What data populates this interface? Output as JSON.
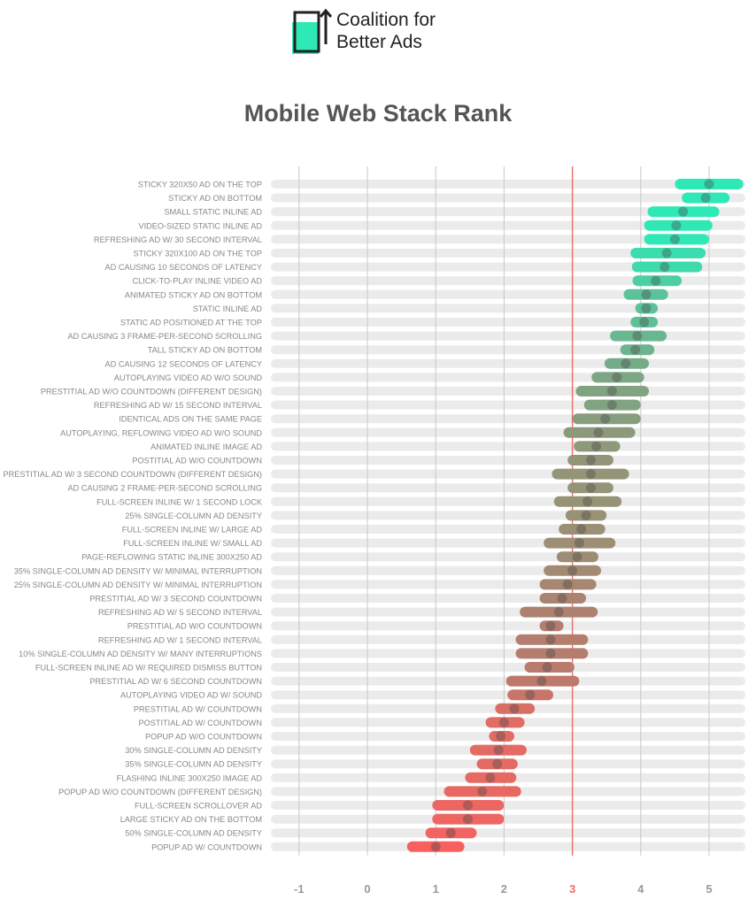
{
  "logo": {
    "line1": "Coalition for",
    "line2": "Better Ads",
    "color": "#2ee8b6"
  },
  "chart_data": {
    "type": "range-dot",
    "title": "Mobile Web Stack Rank",
    "xlim": [
      -1.4,
      5.55
    ],
    "xticks": [
      "-1",
      "0",
      "1",
      "2",
      "3",
      "4",
      "5"
    ],
    "threshold": 3,
    "threshold_color": "#f06b6b",
    "rows": [
      {
        "label": "STICKY 320X50 AD ON THE TOP",
        "score": 5.0,
        "low": 4.5,
        "high": 5.5
      },
      {
        "label": "STICKY AD ON BOTTOM",
        "score": 4.95,
        "low": 4.6,
        "high": 5.3
      },
      {
        "label": "SMALL STATIC INLINE AD",
        "score": 4.62,
        "low": 4.1,
        "high": 5.15
      },
      {
        "label": "VIDEO-SIZED STATIC INLINE AD",
        "score": 4.52,
        "low": 4.05,
        "high": 5.05
      },
      {
        "label": "REFRESHING AD W/ 30 SECOND INTERVAL",
        "score": 4.5,
        "low": 4.05,
        "high": 5.0
      },
      {
        "label": "STICKY 320X100 AD ON THE TOP",
        "score": 4.38,
        "low": 3.85,
        "high": 4.95
      },
      {
        "label": "AD CAUSING 10 SECONDS OF LATENCY",
        "score": 4.35,
        "low": 3.87,
        "high": 4.9
      },
      {
        "label": "CLICK-TO-PLAY INLINE VIDEO AD",
        "score": 4.22,
        "low": 3.88,
        "high": 4.6
      },
      {
        "label": "ANIMATED STICKY AD ON BOTTOM",
        "score": 4.08,
        "low": 3.75,
        "high": 4.4
      },
      {
        "label": "STATIC INLINE AD",
        "score": 4.08,
        "low": 3.92,
        "high": 4.25
      },
      {
        "label": "STATIC AD POSITIONED AT THE TOP",
        "score": 4.05,
        "low": 3.85,
        "high": 4.25
      },
      {
        "label": "AD CAUSING 3 FRAME-PER-SECOND SCROLLING",
        "score": 3.95,
        "low": 3.55,
        "high": 4.38
      },
      {
        "label": "TALL STICKY AD ON BOTTOM",
        "score": 3.92,
        "low": 3.7,
        "high": 4.2
      },
      {
        "label": "AD CAUSING 12 SECONDS OF LATENCY",
        "score": 3.78,
        "low": 3.47,
        "high": 4.12
      },
      {
        "label": "AUTOPLAYING VIDEO AD W/O SOUND",
        "score": 3.65,
        "low": 3.28,
        "high": 4.05
      },
      {
        "label": "PRESTITIAL AD W/O COUNTDOWN (DIFFERENT DESIGN)",
        "score": 3.58,
        "low": 3.05,
        "high": 4.12
      },
      {
        "label": "REFRESHING AD W/ 15 SECOND INTERVAL",
        "score": 3.58,
        "low": 3.17,
        "high": 4.0
      },
      {
        "label": "IDENTICAL ADS ON THE SAME PAGE",
        "score": 3.48,
        "low": 3.0,
        "high": 4.0
      },
      {
        "label": "AUTOPLAYING, REFLOWING VIDEO AD W/O SOUND",
        "score": 3.38,
        "low": 2.87,
        "high": 3.92
      },
      {
        "label": "ANIMATED INLINE IMAGE AD",
        "score": 3.35,
        "low": 3.02,
        "high": 3.7
      },
      {
        "label": "POSTITIAL AD W/O COUNTDOWN",
        "score": 3.27,
        "low": 2.93,
        "high": 3.6
      },
      {
        "label": "PRESTITIAL AD W/ 3 SECOND COUNTDOWN (DIFFERENT DESIGN)",
        "score": 3.27,
        "low": 2.7,
        "high": 3.83
      },
      {
        "label": "AD CAUSING 2 FRAME-PER-SECOND SCROLLING",
        "score": 3.27,
        "low": 2.93,
        "high": 3.6
      },
      {
        "label": "FULL-SCREEN INLINE W/ 1 SECOND LOCK",
        "score": 3.22,
        "low": 2.73,
        "high": 3.72
      },
      {
        "label": "25% SINGLE-COLUMN AD DENSITY",
        "score": 3.2,
        "low": 2.9,
        "high": 3.5
      },
      {
        "label": "FULL-SCREEN INLINE W/ LARGE AD",
        "score": 3.13,
        "low": 2.8,
        "high": 3.48
      },
      {
        "label": "FULL-SCREEN INLINE W/ SMALL AD",
        "score": 3.1,
        "low": 2.58,
        "high": 3.63
      },
      {
        "label": "PAGE-REFLOWING STATIC INLINE 300X250 AD",
        "score": 3.07,
        "low": 2.77,
        "high": 3.38
      },
      {
        "label": "35% SINGLE-COLUMN AD DENSITY W/ MINIMAL INTERRUPTION",
        "score": 3.0,
        "low": 2.58,
        "high": 3.42
      },
      {
        "label": "25% SINGLE-COLUMN AD DENSITY W/ MINIMAL INTERRUPTION",
        "score": 2.93,
        "low": 2.52,
        "high": 3.35
      },
      {
        "label": "PRESTITIAL AD W/ 3 SECOND COUNTDOWN",
        "score": 2.85,
        "low": 2.52,
        "high": 3.2
      },
      {
        "label": "REFRESHING AD W/ 5 SECOND INTERVAL",
        "score": 2.8,
        "low": 2.23,
        "high": 3.37
      },
      {
        "label": "PRESTITIAL AD W/O COUNTDOWN",
        "score": 2.68,
        "low": 2.52,
        "high": 2.87
      },
      {
        "label": "REFRESHING AD W/ 1 SECOND INTERVAL",
        "score": 2.68,
        "low": 2.17,
        "high": 3.23
      },
      {
        "label": "10% SINGLE-COLUMN AD DENSITY W/ MANY INTERRUPTIONS",
        "score": 2.68,
        "low": 2.17,
        "high": 3.23
      },
      {
        "label": "FULL-SCREEN INLINE AD W/ REQUIRED DISMISS BUTTON",
        "score": 2.63,
        "low": 2.3,
        "high": 3.03
      },
      {
        "label": "PRESTITIAL AD W/ 6 SECOND COUNTDOWN",
        "score": 2.55,
        "low": 2.03,
        "high": 3.1
      },
      {
        "label": "AUTOPLAYING VIDEO AD W/ SOUND",
        "score": 2.38,
        "low": 2.05,
        "high": 2.72
      },
      {
        "label": "PRESTITIAL AD W/ COUNTDOWN",
        "score": 2.15,
        "low": 1.87,
        "high": 2.45
      },
      {
        "label": "POSTITIAL AD W/ COUNTDOWN",
        "score": 2.0,
        "low": 1.73,
        "high": 2.3
      },
      {
        "label": "POPUP AD W/O COUNTDOWN",
        "score": 1.95,
        "low": 1.78,
        "high": 2.15
      },
      {
        "label": "30% SINGLE-COLUMN AD DENSITY",
        "score": 1.92,
        "low": 1.5,
        "high": 2.33
      },
      {
        "label": "35% SINGLE-COLUMN AD DENSITY",
        "score": 1.9,
        "low": 1.6,
        "high": 2.2
      },
      {
        "label": "FLASHING INLINE 300X250 IMAGE AD",
        "score": 1.8,
        "low": 1.43,
        "high": 2.18
      },
      {
        "label": "POPUP AD W/O COUNTDOWN (DIFFERENT DESIGN)",
        "score": 1.68,
        "low": 1.12,
        "high": 2.25
      },
      {
        "label": "FULL-SCREEN SCROLLOVER AD",
        "score": 1.47,
        "low": 0.95,
        "high": 2.0
      },
      {
        "label": "LARGE STICKY AD ON THE BOTTOM",
        "score": 1.47,
        "low": 0.95,
        "high": 2.0
      },
      {
        "label": "50% SINGLE-COLUMN AD DENSITY",
        "score": 1.22,
        "low": 0.85,
        "high": 1.6
      },
      {
        "label": "POPUP AD W/ COUNTDOWN",
        "score": 1.0,
        "low": 0.58,
        "high": 1.42
      }
    ]
  }
}
